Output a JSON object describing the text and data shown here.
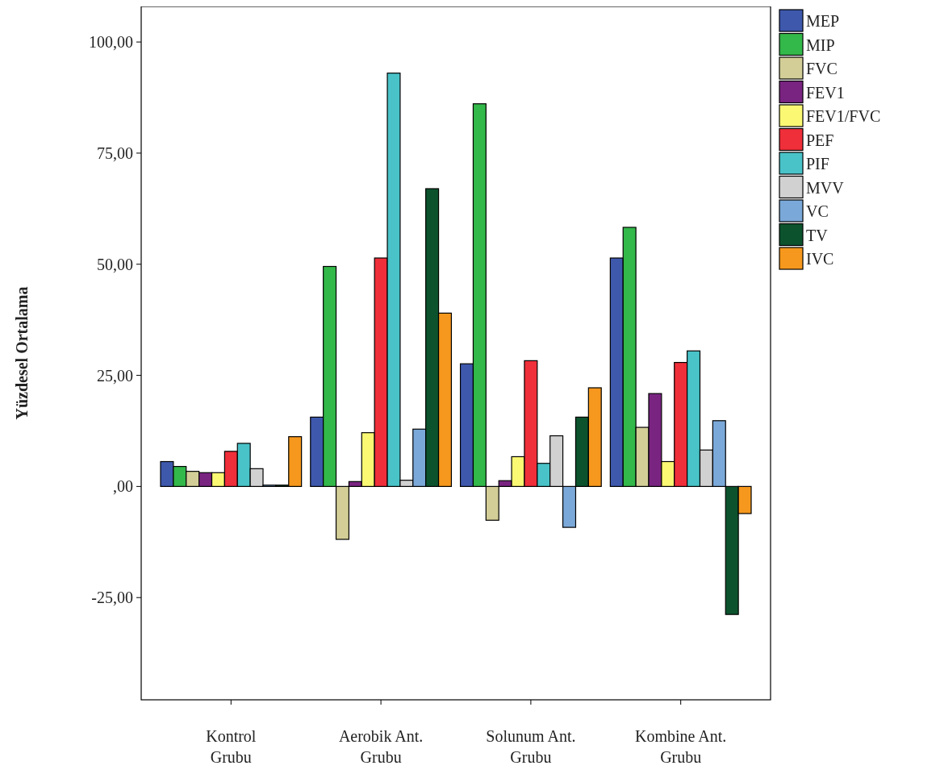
{
  "chart_data": {
    "type": "bar",
    "ylabel": "Yüzdesel Ortalama",
    "categories": [
      "Kontrol Grubu",
      "Aerobik Ant. Grubu",
      "Solunum Ant. Grubu",
      "Kombine Ant. Grubu"
    ],
    "ylim": [
      -48,
      108
    ],
    "yticks": [
      {
        "value": -25,
        "label": "-25,00"
      },
      {
        "value": 0,
        "label": ",00"
      },
      {
        "value": 25,
        "label": "25,00"
      },
      {
        "value": 50,
        "label": "50,00"
      },
      {
        "value": 75,
        "label": "75,00"
      },
      {
        "value": 100,
        "label": "100,00"
      }
    ],
    "grid": false,
    "legend": "top right",
    "series": [
      {
        "name": "MEP",
        "color": "#3e58ac",
        "values": [
          5.6,
          15.6,
          27.6,
          51.4
        ]
      },
      {
        "name": "MIP",
        "color": "#33b84a",
        "values": [
          4.5,
          49.5,
          86.1,
          58.3
        ]
      },
      {
        "name": "FVC",
        "color": "#d3ce97",
        "values": [
          3.4,
          -11.9,
          -7.6,
          13.3
        ]
      },
      {
        "name": "FEV1",
        "color": "#7a2481",
        "values": [
          3.1,
          1.1,
          1.3,
          20.9
        ]
      },
      {
        "name": "FEV1/FVC",
        "color": "#fbf873",
        "values": [
          3.1,
          12.1,
          6.7,
          5.6
        ]
      },
      {
        "name": "PEF",
        "color": "#ef2f3a",
        "values": [
          7.9,
          51.4,
          28.3,
          27.9
        ]
      },
      {
        "name": "PIF",
        "color": "#49c3c8",
        "values": [
          9.7,
          93.0,
          5.2,
          30.5
        ]
      },
      {
        "name": "MVV",
        "color": "#d1d1d1",
        "values": [
          4.0,
          1.4,
          11.4,
          8.2
        ]
      },
      {
        "name": "VC",
        "color": "#7aa8d8",
        "values": [
          0.3,
          12.9,
          -9.2,
          14.8
        ]
      },
      {
        "name": "TV",
        "color": "#0c532d",
        "values": [
          0.3,
          67.0,
          15.6,
          -28.8
        ]
      },
      {
        "name": "IVC",
        "color": "#f6981d",
        "values": [
          11.2,
          39.0,
          22.2,
          -6.1
        ]
      }
    ]
  }
}
